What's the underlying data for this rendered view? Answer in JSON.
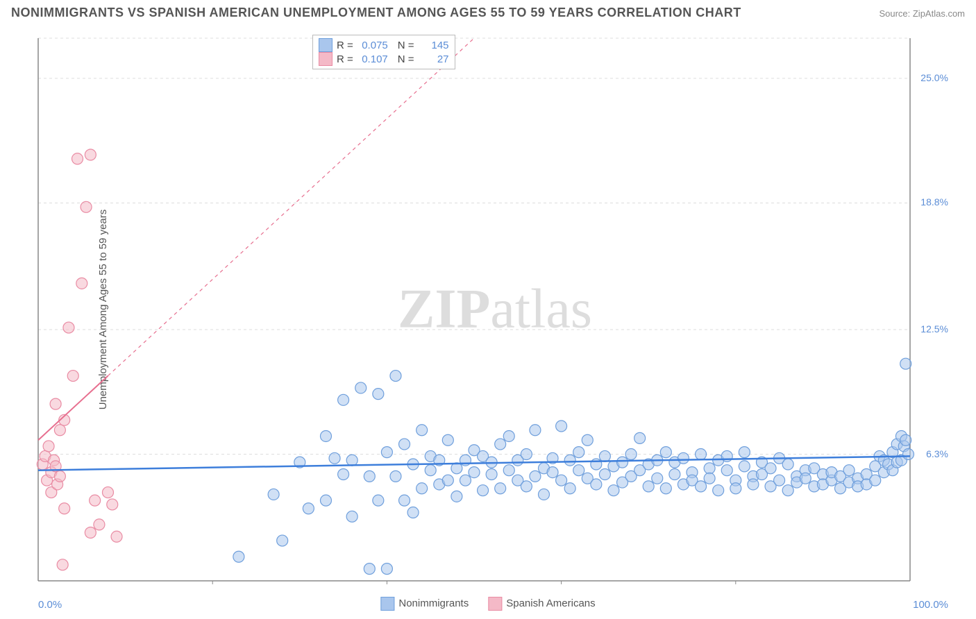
{
  "title": "NONIMMIGRANTS VS SPANISH AMERICAN UNEMPLOYMENT AMONG AGES 55 TO 59 YEARS CORRELATION CHART",
  "source": "Source: ZipAtlas.com",
  "watermark": {
    "part1": "ZIP",
    "part2": "atlas"
  },
  "y_axis_label": "Unemployment Among Ages 55 to 59 years",
  "chart": {
    "type": "scatter",
    "background_color": "#ffffff",
    "grid_color": "#dddddd",
    "grid_dash": "4,4",
    "xlim": [
      0,
      100
    ],
    "ylim": [
      0,
      27
    ],
    "x_ticks": [
      0,
      20,
      40,
      60,
      80,
      100
    ],
    "x_tick_labels": {
      "0": "0.0%",
      "100": "100.0%"
    },
    "y_ticks": [
      6.3,
      12.5,
      18.8,
      25.0
    ],
    "y_tick_labels": [
      "6.3%",
      "12.5%",
      "18.8%",
      "25.0%"
    ],
    "marker_radius": 8,
    "marker_opacity": 0.55,
    "axis_label_color": "#5b8dd6",
    "text_color": "#555555",
    "title_fontsize": 18,
    "label_fontsize": 15
  },
  "stats_legend": {
    "rows": [
      {
        "r_label": "R =",
        "r_value": "0.075",
        "n_label": "N =",
        "n_value": "145",
        "fill": "#a9c6ed",
        "stroke": "#6f9fdc"
      },
      {
        "r_label": "R =",
        "r_value": "0.107",
        "n_label": "N =",
        "n_value": "27",
        "fill": "#f4b9c7",
        "stroke": "#e98ba3"
      }
    ]
  },
  "series_legend": [
    {
      "label": "Nonimmigrants",
      "fill": "#a9c6ed",
      "stroke": "#6f9fdc"
    },
    {
      "label": "Spanish Americans",
      "fill": "#f4b9c7",
      "stroke": "#e98ba3"
    }
  ],
  "series": {
    "nonimmigrants": {
      "color_fill": "#a9c6ed",
      "color_stroke": "#6f9fdc",
      "trend": {
        "x1": 0,
        "y1": 5.5,
        "x2": 100,
        "y2": 6.2,
        "color": "#3d7edb",
        "width": 2.5,
        "dash": "none"
      },
      "points": [
        [
          23,
          1.2
        ],
        [
          27,
          4.3
        ],
        [
          28,
          2.0
        ],
        [
          30,
          5.9
        ],
        [
          31,
          3.6
        ],
        [
          33,
          7.2
        ],
        [
          33,
          4.0
        ],
        [
          34,
          6.1
        ],
        [
          35,
          9.0
        ],
        [
          35,
          5.3
        ],
        [
          36,
          3.2
        ],
        [
          36,
          6.0
        ],
        [
          37,
          9.6
        ],
        [
          38,
          0.6
        ],
        [
          38,
          5.2
        ],
        [
          39,
          4.0
        ],
        [
          39,
          9.3
        ],
        [
          40,
          6.4
        ],
        [
          40,
          0.6
        ],
        [
          41,
          5.2
        ],
        [
          41,
          10.2
        ],
        [
          42,
          4.0
        ],
        [
          42,
          6.8
        ],
        [
          43,
          3.4
        ],
        [
          43,
          5.8
        ],
        [
          44,
          7.5
        ],
        [
          44,
          4.6
        ],
        [
          45,
          5.5
        ],
        [
          45,
          6.2
        ],
        [
          46,
          4.8
        ],
        [
          46,
          6.0
        ],
        [
          47,
          5.0
        ],
        [
          47,
          7.0
        ],
        [
          48,
          5.6
        ],
        [
          48,
          4.2
        ],
        [
          49,
          6.0
        ],
        [
          49,
          5.0
        ],
        [
          50,
          5.4
        ],
        [
          50,
          6.5
        ],
        [
          51,
          4.5
        ],
        [
          51,
          6.2
        ],
        [
          52,
          5.3
        ],
        [
          52,
          5.9
        ],
        [
          53,
          6.8
        ],
        [
          53,
          4.6
        ],
        [
          54,
          5.5
        ],
        [
          54,
          7.2
        ],
        [
          55,
          5.0
        ],
        [
          55,
          6.0
        ],
        [
          56,
          4.7
        ],
        [
          56,
          6.3
        ],
        [
          57,
          5.2
        ],
        [
          57,
          7.5
        ],
        [
          58,
          5.6
        ],
        [
          58,
          4.3
        ],
        [
          59,
          6.1
        ],
        [
          59,
          5.4
        ],
        [
          60,
          7.7
        ],
        [
          60,
          5.0
        ],
        [
          61,
          6.0
        ],
        [
          61,
          4.6
        ],
        [
          62,
          5.5
        ],
        [
          62,
          6.4
        ],
        [
          63,
          5.1
        ],
        [
          63,
          7.0
        ],
        [
          64,
          4.8
        ],
        [
          64,
          5.8
        ],
        [
          65,
          5.3
        ],
        [
          65,
          6.2
        ],
        [
          66,
          4.5
        ],
        [
          66,
          5.7
        ],
        [
          67,
          5.9
        ],
        [
          67,
          4.9
        ],
        [
          68,
          6.3
        ],
        [
          68,
          5.2
        ],
        [
          69,
          7.1
        ],
        [
          69,
          5.5
        ],
        [
          70,
          4.7
        ],
        [
          70,
          5.8
        ],
        [
          71,
          6.0
        ],
        [
          71,
          5.1
        ],
        [
          72,
          4.6
        ],
        [
          72,
          6.4
        ],
        [
          73,
          5.3
        ],
        [
          73,
          5.9
        ],
        [
          74,
          4.8
        ],
        [
          74,
          6.1
        ],
        [
          75,
          5.4
        ],
        [
          75,
          5.0
        ],
        [
          76,
          6.3
        ],
        [
          76,
          4.7
        ],
        [
          77,
          5.6
        ],
        [
          77,
          5.1
        ],
        [
          78,
          6.0
        ],
        [
          78,
          4.5
        ],
        [
          79,
          5.5
        ],
        [
          79,
          6.2
        ],
        [
          80,
          5.0
        ],
        [
          80,
          4.6
        ],
        [
          81,
          5.7
        ],
        [
          81,
          6.4
        ],
        [
          82,
          5.2
        ],
        [
          82,
          4.8
        ],
        [
          83,
          5.9
        ],
        [
          83,
          5.3
        ],
        [
          84,
          4.7
        ],
        [
          84,
          5.6
        ],
        [
          85,
          6.1
        ],
        [
          85,
          5.0
        ],
        [
          86,
          4.5
        ],
        [
          86,
          5.8
        ],
        [
          87,
          5.2
        ],
        [
          87,
          4.9
        ],
        [
          88,
          5.5
        ],
        [
          88,
          5.1
        ],
        [
          89,
          4.7
        ],
        [
          89,
          5.6
        ],
        [
          90,
          5.3
        ],
        [
          90,
          4.8
        ],
        [
          91,
          5.0
        ],
        [
          91,
          5.4
        ],
        [
          92,
          4.6
        ],
        [
          92,
          5.2
        ],
        [
          93,
          4.9
        ],
        [
          93,
          5.5
        ],
        [
          94,
          5.1
        ],
        [
          94,
          4.7
        ],
        [
          95,
          5.3
        ],
        [
          95,
          4.8
        ],
        [
          96,
          5.0
        ],
        [
          96,
          5.7
        ],
        [
          96.5,
          6.2
        ],
        [
          97,
          5.4
        ],
        [
          97,
          6.0
        ],
        [
          97.5,
          5.8
        ],
        [
          98,
          6.4
        ],
        [
          98,
          5.5
        ],
        [
          98.5,
          6.8
        ],
        [
          98.5,
          5.9
        ],
        [
          99,
          7.2
        ],
        [
          99,
          6.0
        ],
        [
          99.3,
          6.7
        ],
        [
          99.5,
          7.0
        ],
        [
          99.5,
          10.8
        ],
        [
          99.8,
          6.3
        ]
      ]
    },
    "spanish_americans": {
      "color_fill": "#f4b9c7",
      "color_stroke": "#e98ba3",
      "trend": {
        "x1": 0,
        "y1": 7.0,
        "x2": 50,
        "y2": 27.0,
        "color": "#e76f8f",
        "width": 2,
        "dash": "5,5",
        "solid_until_x": 8
      },
      "points": [
        [
          0.5,
          5.8
        ],
        [
          0.8,
          6.2
        ],
        [
          1.0,
          5.0
        ],
        [
          1.2,
          6.7
        ],
        [
          1.5,
          5.4
        ],
        [
          1.8,
          6.0
        ],
        [
          1.5,
          4.4
        ],
        [
          2.0,
          5.7
        ],
        [
          2.0,
          8.8
        ],
        [
          2.2,
          4.8
        ],
        [
          2.5,
          7.5
        ],
        [
          2.5,
          5.2
        ],
        [
          3.0,
          8.0
        ],
        [
          3.0,
          3.6
        ],
        [
          3.5,
          12.6
        ],
        [
          4.0,
          10.2
        ],
        [
          4.5,
          21.0
        ],
        [
          5.0,
          14.8
        ],
        [
          5.5,
          18.6
        ],
        [
          6.0,
          21.2
        ],
        [
          6.0,
          2.4
        ],
        [
          6.5,
          4.0
        ],
        [
          7.0,
          2.8
        ],
        [
          8.0,
          4.4
        ],
        [
          8.5,
          3.8
        ],
        [
          9.0,
          2.2
        ],
        [
          2.8,
          0.8
        ]
      ]
    }
  }
}
